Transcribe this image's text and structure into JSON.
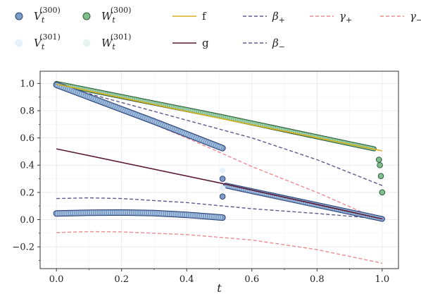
{
  "chart_data": {
    "type": "line",
    "title": "",
    "xlabel": "t",
    "ylabel": "",
    "xlim": [
      -0.05,
      1.05
    ],
    "ylim": [
      -0.36,
      1.09
    ],
    "grid": true,
    "legend_position": "top",
    "x_ticks": [
      0.0,
      0.2,
      0.4,
      0.6,
      0.8,
      1.0
    ],
    "x_tick_labels": [
      "0.0",
      "0.2",
      "0.4",
      "0.6",
      "0.8",
      "1.0"
    ],
    "y_ticks": [
      -0.2,
      0.0,
      0.2,
      0.4,
      0.6,
      0.8,
      1.0
    ],
    "y_tick_labels": [
      "−0.2",
      "0.0",
      "0.2",
      "0.4",
      "0.6",
      "0.8",
      "1.0"
    ],
    "colors": {
      "f": "#d8b11a",
      "g": "#5b1a36",
      "beta": "#5f5a8e",
      "gamma": "#f08a92",
      "v300_fill": "#7a9ec8",
      "v300_edge": "#2b3f73",
      "v301": "#e6f1fa",
      "w300_fill": "#7fbf8c",
      "w300_edge": "#2b5a3b",
      "w301": "#e6f5ee"
    },
    "legend": [
      {
        "key": "v300",
        "base": "V",
        "sub": "t",
        "sup": "(300)",
        "kind": "marker"
      },
      {
        "key": "v301",
        "base": "V",
        "sub": "t",
        "sup": "(301)",
        "kind": "marker"
      },
      {
        "key": "w300",
        "base": "W",
        "sub": "t",
        "sup": "(300)",
        "kind": "marker"
      },
      {
        "key": "w301",
        "base": "W",
        "sub": "t",
        "sup": "(301)",
        "kind": "marker"
      },
      {
        "key": "f",
        "label": "f",
        "kind": "line"
      },
      {
        "key": "g",
        "label": "g",
        "kind": "line"
      },
      {
        "key": "beta_plus",
        "base": "β",
        "sub": "+",
        "kind": "dashed"
      },
      {
        "key": "beta_minus",
        "base": "β",
        "sub": "−",
        "kind": "dashed"
      },
      {
        "key": "gamma_plus",
        "base": "γ",
        "sub": "+",
        "kind": "dashed"
      },
      {
        "key": "gamma_minus",
        "base": "γ",
        "sub": "−",
        "kind": "dashed"
      }
    ],
    "series": [
      {
        "name": "f",
        "style": "solid",
        "color_key": "f",
        "x": [
          0.0,
          0.5,
          0.97,
          1.0
        ],
        "y": [
          0.995,
          0.745,
          0.52,
          0.505
        ]
      },
      {
        "name": "g",
        "style": "solid",
        "color_key": "g",
        "x": [
          0.0,
          0.5,
          0.5,
          1.0
        ],
        "y": [
          0.52,
          0.27,
          0.27,
          0.005
        ]
      },
      {
        "name": "β₊",
        "style": "dashed",
        "color_key": "beta",
        "x": [
          0.0,
          0.2,
          0.4,
          0.6,
          0.8,
          1.0
        ],
        "y": [
          0.99,
          0.86,
          0.73,
          0.6,
          0.44,
          0.25
        ]
      },
      {
        "name": "β₋",
        "style": "dashed",
        "color_key": "beta",
        "x": [
          0.0,
          0.1,
          0.2,
          0.4,
          0.6,
          0.8,
          1.0
        ],
        "y": [
          0.155,
          0.16,
          0.155,
          0.125,
          0.08,
          0.045,
          0.005
        ]
      },
      {
        "name": "γ₊",
        "style": "dashed",
        "color_key": "gamma",
        "x": [
          0.0,
          0.2,
          0.4,
          0.6,
          0.8,
          1.0
        ],
        "y": [
          0.99,
          0.8,
          0.6,
          0.39,
          0.2,
          -0.01
        ]
      },
      {
        "name": "γ₋",
        "style": "dashed",
        "color_key": "gamma",
        "x": [
          0.0,
          0.1,
          0.2,
          0.4,
          0.6,
          0.8,
          1.0
        ],
        "y": [
          -0.095,
          -0.088,
          -0.09,
          -0.11,
          -0.15,
          -0.22,
          -0.32
        ]
      }
    ],
    "thick_bands": [
      {
        "name": "W300 upper",
        "x": [
          0.0,
          0.5,
          0.975
        ],
        "y": [
          1.0,
          0.76,
          0.52
        ],
        "fill_key": "w300_fill",
        "edge_key": "w300_edge",
        "width": 5
      },
      {
        "name": "V300 upper-left",
        "x": [
          0.0,
          0.1,
          0.3,
          0.51
        ],
        "y": [
          0.99,
          0.9,
          0.72,
          0.525
        ],
        "fill_key": "v300_fill",
        "edge_key": "v300_edge",
        "width": 7
      },
      {
        "name": "V300 lower-left",
        "x": [
          0.0,
          0.1,
          0.2,
          0.3,
          0.4,
          0.51
        ],
        "y": [
          0.045,
          0.05,
          0.052,
          0.048,
          0.035,
          0.015
        ],
        "fill_key": "v300_fill",
        "edge_key": "v300_edge",
        "width": 7
      },
      {
        "name": "V300 upper-right",
        "x": [
          0.52,
          1.0
        ],
        "y": [
          0.25,
          0.005
        ],
        "fill_key": "v300_fill",
        "edge_key": "v300_edge",
        "width": 6
      }
    ],
    "marker_points": [
      {
        "series": "V300",
        "x": 0.51,
        "y": 0.3,
        "fill_key": "v300_fill",
        "edge_key": "v300_edge"
      },
      {
        "series": "V300",
        "x": 0.51,
        "y": 0.17,
        "fill_key": "v300_fill",
        "edge_key": "v300_edge"
      },
      {
        "series": "V301",
        "x": 0.51,
        "y": 0.36,
        "fill_key": "v301",
        "edge_key": "v301"
      },
      {
        "series": "V301",
        "x": 0.51,
        "y": 0.23,
        "fill_key": "v301",
        "edge_key": "v301"
      },
      {
        "series": "W300",
        "x": 0.99,
        "y": 0.44,
        "fill_key": "w300_fill",
        "edge_key": "w300_edge"
      },
      {
        "series": "W300",
        "x": 0.993,
        "y": 0.4,
        "fill_key": "w300_fill",
        "edge_key": "w300_edge"
      },
      {
        "series": "W300",
        "x": 0.996,
        "y": 0.32,
        "fill_key": "w300_fill",
        "edge_key": "w300_edge"
      },
      {
        "series": "W300",
        "x": 1.0,
        "y": 0.2,
        "fill_key": "w300_fill",
        "edge_key": "w300_edge"
      }
    ]
  }
}
